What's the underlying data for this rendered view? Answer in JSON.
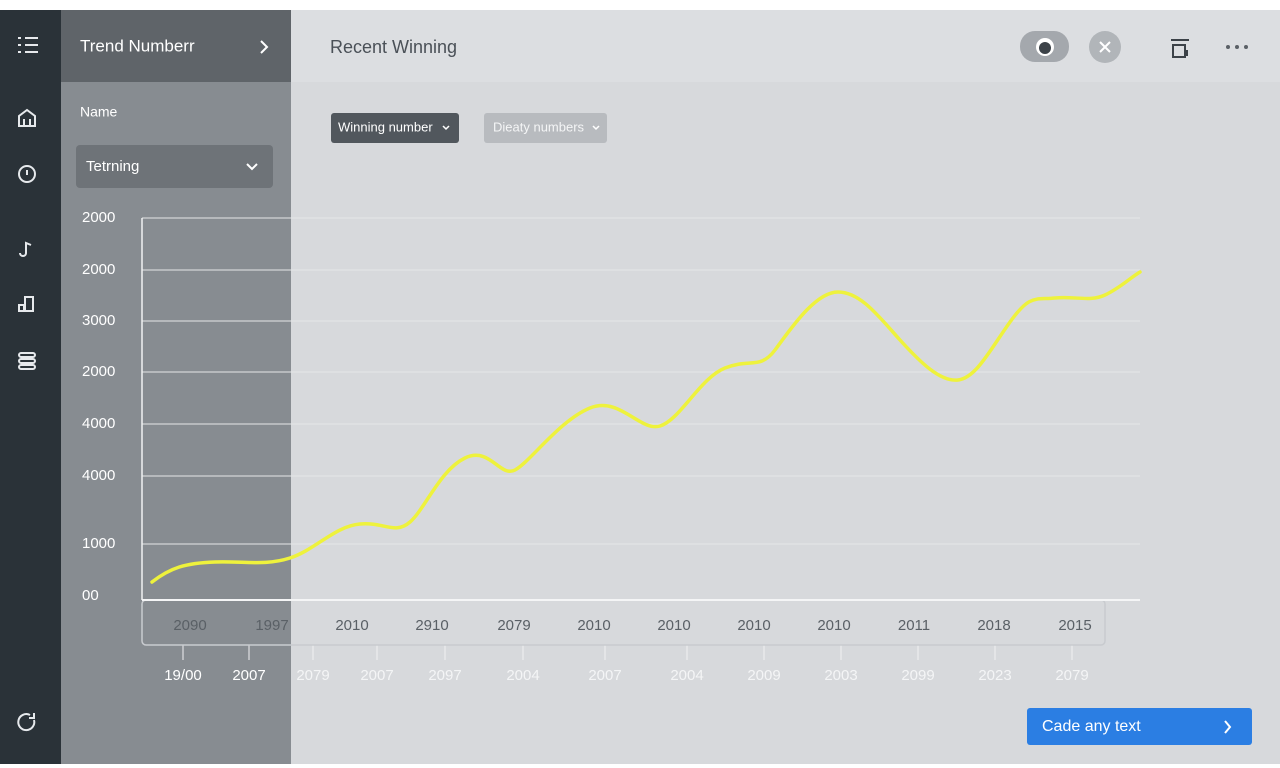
{
  "sidebar_panel": {
    "title": "Trend Numberr",
    "name_label": "Name",
    "dropdown": "Tetrning"
  },
  "header": {
    "title": "Recent Winning"
  },
  "filters": [
    "Winning number",
    "Dieaty numbers"
  ],
  "chart": {
    "y_labels": [
      "2000",
      "2000",
      "3000",
      "2000",
      "4000",
      "4000",
      "1000",
      "00"
    ],
    "x_labels_row1": [
      "2090",
      "1997",
      "2010",
      "2910",
      "2079",
      "2010",
      "2010",
      "2010",
      "2010",
      "2011",
      "2018",
      "2015"
    ],
    "x_labels_row2": [
      "19/00",
      "2007",
      "2079",
      "2007",
      "2097",
      "2004",
      "2007",
      "2004",
      "2009",
      "2003",
      "2099",
      "2023",
      "2079"
    ]
  },
  "button": "Cade any text"
}
